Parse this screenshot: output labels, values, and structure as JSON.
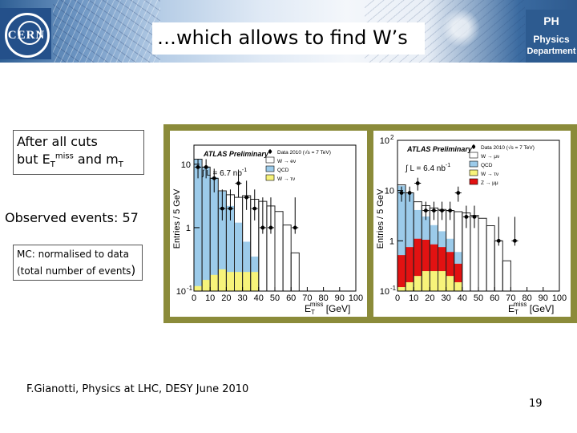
{
  "header": {
    "title": "…which allows to find W’s",
    "cern_logo_text": "CERN",
    "ph_logo": {
      "line1": "PH",
      "line2": "Physics",
      "line3": "Department"
    }
  },
  "left_notes": {
    "cuts_line1": "After all cuts",
    "cuts_line2_prefix": "but E",
    "cuts_line2_sub1": "T",
    "cuts_line2_sup": "miss",
    "cuts_line2_mid": " and m",
    "cuts_line2_sub2": "T",
    "observed": "Observed events: 57",
    "mc_line1": "MC: normalised to data",
    "mc_line2": "(total number of events",
    "mc_line2_paren": ")"
  },
  "chart_data": [
    {
      "type": "bar",
      "panel": "left",
      "title": "ATLAS Preliminary",
      "header_note": "Data 2010 (√s = 7 TeV)",
      "luminosity": "∫ L = 6.7 nb",
      "luminosity_sup": "-1",
      "ylabel": "Entries / 5 GeV",
      "xlabel": "E",
      "xlabel_sub": "T",
      "xlabel_sup": "miss",
      "xlabel_unit": "[GeV]",
      "yscale": "log",
      "ylim": [
        0.1,
        20
      ],
      "xlim": [
        0,
        100
      ],
      "x_tick_labels": [
        "0",
        "10",
        "20",
        "30",
        "40",
        "50",
        "60",
        "70",
        "80",
        "90",
        "100"
      ],
      "y_tick_labels": [
        {
          "value": 10,
          "base": "10",
          "exp": ""
        },
        {
          "value": 1,
          "base": "1",
          "exp": ""
        },
        {
          "value": 0.1,
          "base": "10",
          "exp": "-1"
        }
      ],
      "legend": [
        "Data 2010 (√s = 7 TeV)",
        "W → eν",
        "QCD",
        "W → τν"
      ],
      "colors": {
        "signal": "#ffffff",
        "qcd": "#9ccbea",
        "tau": "#f7f37a",
        "line": "#222222"
      },
      "bin_edges": [
        0,
        5,
        10,
        15,
        20,
        25,
        30,
        35,
        40,
        45,
        50,
        55,
        60,
        65,
        70,
        75,
        80,
        85,
        90,
        95,
        100
      ],
      "stack_tau": [
        0.12,
        0.15,
        0.18,
        0.22,
        0.2,
        0.2,
        0.2,
        0.2,
        0,
        0,
        0,
        0,
        0,
        0,
        0,
        0,
        0,
        0,
        0,
        0
      ],
      "stack_qcd": [
        12,
        9,
        6,
        3.5,
        2,
        1,
        0.4,
        0.15,
        0,
        0,
        0,
        0,
        0,
        0,
        0,
        0,
        0,
        0,
        0,
        0
      ],
      "stack_total": [
        12,
        9,
        6,
        3.8,
        3.3,
        3,
        3.2,
        2.8,
        2.6,
        2.2,
        1.8,
        1.1,
        0.4,
        0.1,
        0,
        0,
        0,
        0,
        0,
        0
      ],
      "data_x": [
        2.5,
        7.5,
        12.5,
        17.5,
        22.5,
        27.5,
        32.5,
        37.5,
        42.5,
        47.5,
        62.5
      ],
      "data_y": [
        9,
        9,
        6,
        2,
        2,
        5,
        3,
        2,
        1,
        1,
        1
      ],
      "data_err_lo": [
        6,
        6,
        3.6,
        1.3,
        1.3,
        3,
        1.9,
        1.3,
        0.8,
        0.8,
        0.8
      ],
      "data_err_hi": [
        12,
        12,
        8.5,
        4,
        4,
        7.5,
        5.5,
        4,
        3,
        3,
        3
      ]
    },
    {
      "type": "bar",
      "panel": "right",
      "title": "ATLAS Preliminary",
      "header_note": "Data 2010 (√s = 7 TeV)",
      "luminosity": "∫ L = 6.4 nb",
      "luminosity_sup": "-1",
      "ylabel": "Entries / 5 GeV",
      "xlabel": "E",
      "xlabel_sub": "T",
      "xlabel_sup": "miss",
      "xlabel_unit": "[GeV]",
      "yscale": "log",
      "ylim": [
        0.1,
        100
      ],
      "xlim": [
        0,
        100
      ],
      "x_tick_labels": [
        "0",
        "10",
        "20",
        "30",
        "40",
        "50",
        "60",
        "70",
        "80",
        "90",
        "100"
      ],
      "y_tick_labels": [
        {
          "value": 100,
          "base": "10",
          "exp": "2"
        },
        {
          "value": 10,
          "base": "10",
          "exp": ""
        },
        {
          "value": 1,
          "base": "1",
          "exp": ""
        },
        {
          "value": 0.1,
          "base": "10",
          "exp": "-1"
        }
      ],
      "legend": [
        "Data 2010 (√s = 7 TeV)",
        "W → μν",
        "QCD",
        "W → τν",
        "Z → μμ"
      ],
      "colors": {
        "signal": "#ffffff",
        "qcd": "#9ccbea",
        "tau": "#f7f37a",
        "z": "#e21212",
        "line": "#222222"
      },
      "bin_edges": [
        0,
        5,
        10,
        15,
        20,
        25,
        30,
        35,
        40,
        45,
        50,
        55,
        60,
        65,
        70,
        75,
        80,
        85,
        90,
        95,
        100
      ],
      "stack_tau": [
        0.12,
        0.15,
        0.2,
        0.25,
        0.25,
        0.25,
        0.2,
        0.15,
        0,
        0,
        0,
        0,
        0,
        0,
        0,
        0,
        0,
        0,
        0,
        0
      ],
      "stack_z": [
        0.4,
        0.6,
        0.9,
        0.8,
        0.6,
        0.5,
        0.4,
        0.2,
        0,
        0,
        0,
        0,
        0,
        0,
        0,
        0,
        0,
        0,
        0,
        0
      ],
      "stack_qcd": [
        12,
        8,
        3,
        2,
        1.2,
        0.8,
        0.5,
        0.25,
        0,
        0,
        0,
        0,
        0,
        0,
        0,
        0,
        0,
        0,
        0,
        0
      ],
      "stack_total": [
        13,
        9,
        6,
        5,
        4.5,
        4.2,
        4,
        3.8,
        3.6,
        3.2,
        2.8,
        2,
        1,
        0.4,
        0,
        0,
        0,
        0,
        0,
        0
      ],
      "data_x": [
        2.5,
        7.5,
        12.5,
        17.5,
        22.5,
        27.5,
        32.5,
        37.5,
        42.5,
        47.5,
        62.5,
        72.5
      ],
      "data_y": [
        9,
        9,
        14,
        4,
        4,
        4,
        4,
        9,
        3,
        3,
        1,
        1
      ],
      "data_err_lo": [
        6,
        6,
        10,
        2.6,
        2.6,
        2.6,
        2.6,
        6,
        1.8,
        1.8,
        0.8,
        0.8
      ],
      "data_err_hi": [
        12,
        12,
        18,
        6,
        6,
        6,
        6,
        12,
        5,
        5,
        3,
        3
      ]
    }
  ],
  "footer": {
    "credit": "F.Gianotti, Physics at LHC, DESY June 2010",
    "page_number": "19"
  }
}
